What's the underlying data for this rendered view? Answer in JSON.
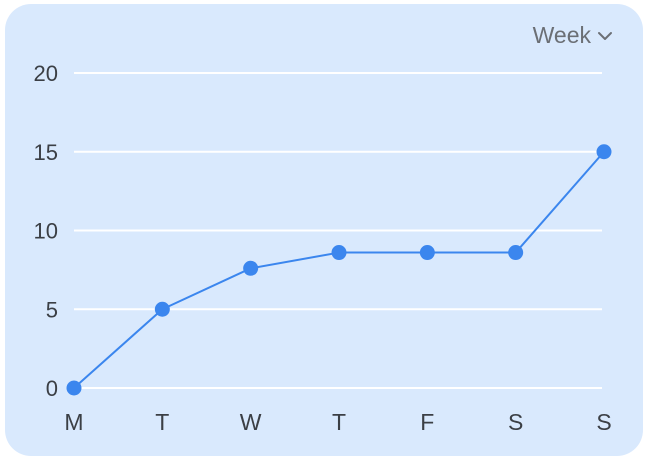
{
  "range_selector": {
    "label": "Week",
    "icon": "chevron-down-icon"
  },
  "chart_data": {
    "type": "line",
    "categories": [
      "M",
      "T",
      "W",
      "T",
      "F",
      "S",
      "S"
    ],
    "values": [
      0,
      5,
      7.6,
      8.6,
      8.6,
      8.6,
      15
    ],
    "yticks": [
      0,
      5,
      10,
      15,
      20
    ],
    "ylim": [
      0,
      20
    ],
    "grid": true,
    "colors": {
      "line": "#3b86ee",
      "grid": "#ffffff",
      "card": "#d9e9fd"
    }
  }
}
